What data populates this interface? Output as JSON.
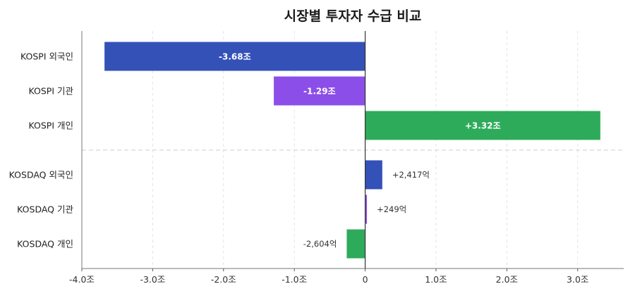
{
  "chart_data": {
    "type": "bar",
    "orientation": "horizontal",
    "title": "시장별 투자자 수급 비교",
    "x_unit": "조",
    "xlim": [
      -4.0,
      3.65
    ],
    "xticks": [
      -4.0,
      -3.0,
      -2.0,
      -1.0,
      0,
      1.0,
      2.0,
      3.0
    ],
    "xtick_labels": [
      "-4.0조",
      "-3.0조",
      "-2.0조",
      "-1.0조",
      "0",
      "1.0조",
      "2.0조",
      "3.0조"
    ],
    "grid": true,
    "categories": [
      "KOSPI 외국인",
      "KOSPI 기관",
      "KOSPI 개인",
      "KOSDAQ 외국인",
      "KOSDAQ 기관",
      "KOSDAQ 개인"
    ],
    "values": [
      -3.68,
      -1.29,
      3.32,
      0.2417,
      0.0249,
      -0.2604
    ],
    "data_labels": [
      "-3.68조",
      "-1.29조",
      "+3.32조",
      "+2,417억",
      "+249억",
      "-2,604억"
    ],
    "colors": [
      "#3451b8",
      "#8c4ee8",
      "#2eab5a",
      "#3451b8",
      "#8c4ee8",
      "#2eab5a"
    ],
    "group_divider_after_index": 2
  }
}
